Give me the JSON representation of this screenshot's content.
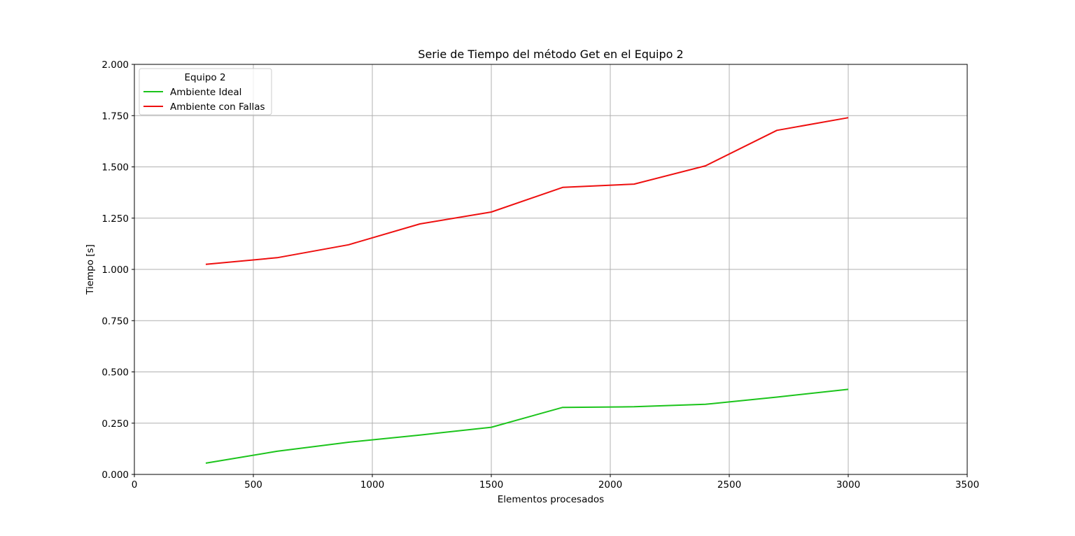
{
  "chart_data": {
    "type": "line",
    "title": "Serie de Tiempo del método Get en el Equipo 2",
    "xlabel": "Elementos procesados",
    "ylabel": "Tiempo [s]",
    "xlim": [
      0,
      3500
    ],
    "ylim": [
      0,
      2.0
    ],
    "x_ticks": [
      0,
      500,
      1000,
      1500,
      2000,
      2500,
      3000,
      3500
    ],
    "x_tick_labels": [
      "0",
      "500",
      "1000",
      "1500",
      "2000",
      "2500",
      "3000",
      "3500"
    ],
    "y_ticks": [
      0,
      0.25,
      0.5,
      0.75,
      1.0,
      1.25,
      1.5,
      1.75,
      2.0
    ],
    "y_tick_labels": [
      "0.000",
      "0.250",
      "0.500",
      "0.750",
      "1.000",
      "1.250",
      "1.500",
      "1.750",
      "2.000"
    ],
    "grid": true,
    "legend": {
      "title": "Equipo 2",
      "placement": "upper-left"
    },
    "x": [
      300,
      600,
      900,
      1200,
      1500,
      1800,
      2100,
      2400,
      2700,
      3000
    ],
    "series": [
      {
        "name": "Ambiente Ideal",
        "color": "#1bc41b",
        "values": [
          0.055,
          0.113,
          0.157,
          0.192,
          0.23,
          0.327,
          0.33,
          0.342,
          0.377,
          0.415
        ]
      },
      {
        "name": "Ambiente con Fallas",
        "color": "#ee0f0f",
        "values": [
          1.025,
          1.057,
          1.12,
          1.222,
          1.28,
          1.4,
          1.416,
          1.505,
          1.678,
          1.74
        ]
      }
    ]
  }
}
